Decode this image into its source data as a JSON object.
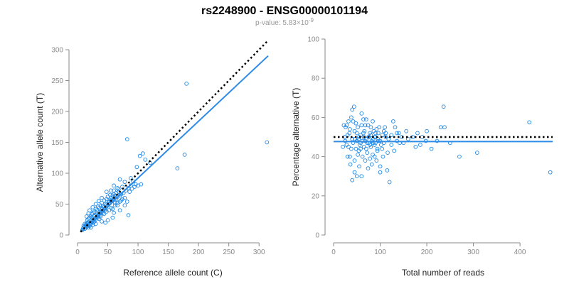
{
  "title": "rs2248900 - ENSG00000101194",
  "subtitle": {
    "prefix": "p-value: 5.83×10",
    "exponent": "-9"
  },
  "colors": {
    "points": "#1e88e5",
    "fit": "#2e8be6",
    "reference": "#000000"
  },
  "chart_data": [
    {
      "type": "scatter",
      "xlabel": "Reference allele count (C)",
      "ylabel": "Alternative allele count (T)",
      "xlim": [
        0,
        315
      ],
      "ylim": [
        0,
        300
      ],
      "xticks": [
        0,
        50,
        100,
        150,
        200,
        250,
        300
      ],
      "yticks": [
        0,
        50,
        100,
        150,
        200,
        250,
        300
      ],
      "fit_line": {
        "style": "solid",
        "x": [
          5,
          315
        ],
        "y": [
          5,
          290
        ]
      },
      "reference_line": {
        "style": "dotted",
        "x": [
          5,
          315
        ],
        "y": [
          5,
          315
        ]
      },
      "points": [
        [
          180,
          245
        ],
        [
          313,
          150
        ],
        [
          82,
          155
        ],
        [
          177,
          130
        ],
        [
          165,
          108
        ],
        [
          108,
          132
        ],
        [
          103,
          128
        ],
        [
          112,
          122
        ],
        [
          120,
          117
        ],
        [
          98,
          110
        ],
        [
          88,
          92
        ],
        [
          92,
          87
        ],
        [
          100,
          80
        ],
        [
          96,
          82
        ],
        [
          105,
          82
        ],
        [
          70,
          90
        ],
        [
          74,
          78
        ],
        [
          66,
          76
        ],
        [
          68,
          70
        ],
        [
          60,
          72
        ],
        [
          62,
          63
        ],
        [
          58,
          64
        ],
        [
          56,
          60
        ],
        [
          50,
          62
        ],
        [
          48,
          58
        ],
        [
          52,
          55
        ],
        [
          44,
          56
        ],
        [
          46,
          50
        ],
        [
          40,
          52
        ],
        [
          42,
          47
        ],
        [
          38,
          48
        ],
        [
          36,
          44
        ],
        [
          34,
          46
        ],
        [
          32,
          40
        ],
        [
          30,
          42
        ],
        [
          28,
          38
        ],
        [
          26,
          36
        ],
        [
          24,
          34
        ],
        [
          22,
          30
        ],
        [
          20,
          28
        ],
        [
          18,
          26
        ],
        [
          16,
          24
        ],
        [
          15,
          20
        ],
        [
          14,
          17
        ],
        [
          12,
          14
        ],
        [
          10,
          12
        ],
        [
          9,
          10
        ],
        [
          8,
          8
        ],
        [
          12,
          10
        ],
        [
          14,
          12
        ],
        [
          16,
          14
        ],
        [
          18,
          16
        ],
        [
          20,
          18
        ],
        [
          22,
          20
        ],
        [
          24,
          22
        ],
        [
          26,
          24
        ],
        [
          28,
          26
        ],
        [
          30,
          28
        ],
        [
          32,
          30
        ],
        [
          34,
          32
        ],
        [
          36,
          34
        ],
        [
          38,
          36
        ],
        [
          40,
          38
        ],
        [
          42,
          40
        ],
        [
          44,
          42
        ],
        [
          46,
          44
        ],
        [
          48,
          46
        ],
        [
          50,
          48
        ],
        [
          52,
          50
        ],
        [
          54,
          52
        ],
        [
          56,
          54
        ],
        [
          58,
          56
        ],
        [
          60,
          58
        ],
        [
          62,
          60
        ],
        [
          64,
          58
        ],
        [
          66,
          62
        ],
        [
          70,
          64
        ],
        [
          72,
          66
        ],
        [
          76,
          68
        ],
        [
          80,
          72
        ],
        [
          84,
          76
        ],
        [
          88,
          80
        ],
        [
          84,
          32
        ],
        [
          70,
          40
        ],
        [
          60,
          36
        ],
        [
          58,
          28
        ],
        [
          50,
          24
        ],
        [
          46,
          20
        ],
        [
          40,
          22
        ],
        [
          36,
          26
        ],
        [
          30,
          18
        ],
        [
          25,
          16
        ],
        [
          22,
          12
        ],
        [
          18,
          12
        ],
        [
          20,
          15
        ],
        [
          28,
          22
        ],
        [
          34,
          28
        ],
        [
          38,
          30
        ],
        [
          44,
          34
        ],
        [
          48,
          38
        ],
        [
          52,
          40
        ],
        [
          56,
          44
        ],
        [
          62,
          48
        ],
        [
          66,
          52
        ],
        [
          72,
          56
        ],
        [
          78,
          60
        ],
        [
          54,
          65
        ],
        [
          48,
          70
        ],
        [
          40,
          60
        ],
        [
          35,
          55
        ],
        [
          30,
          50
        ],
        [
          25,
          45
        ],
        [
          20,
          40
        ],
        [
          18,
          35
        ],
        [
          15,
          30
        ],
        [
          24,
          28
        ],
        [
          28,
          30
        ],
        [
          32,
          33
        ],
        [
          36,
          37
        ],
        [
          40,
          42
        ],
        [
          44,
          45
        ],
        [
          48,
          49
        ],
        [
          52,
          53
        ],
        [
          56,
          57
        ],
        [
          60,
          66
        ],
        [
          64,
          68
        ],
        [
          68,
          74
        ],
        [
          58,
          42
        ],
        [
          62,
          52
        ],
        [
          66,
          48
        ],
        [
          70,
          54
        ],
        [
          74,
          58
        ],
        [
          78,
          48
        ],
        [
          82,
          54
        ],
        [
          86,
          70
        ],
        [
          90,
          75
        ],
        [
          94,
          78
        ],
        [
          78,
          86
        ],
        [
          60,
          80
        ],
        [
          55,
          72
        ],
        [
          45,
          40
        ],
        [
          42,
          36
        ],
        [
          38,
          32
        ],
        [
          34,
          30
        ],
        [
          30,
          25
        ],
        [
          26,
          20
        ],
        [
          22,
          18
        ],
        [
          18,
          20
        ],
        [
          16,
          18
        ],
        [
          14,
          15
        ],
        [
          12,
          18
        ],
        [
          10,
          15
        ]
      ]
    },
    {
      "type": "scatter",
      "xlabel": "Total number of reads",
      "ylabel": "Percentage alternative (T)",
      "xlim": [
        0,
        470
      ],
      "ylim": [
        0,
        100
      ],
      "xticks": [
        0,
        100,
        200,
        300,
        400
      ],
      "yticks": [
        0,
        20,
        40,
        60,
        80,
        100
      ],
      "fit_line": {
        "style": "solid",
        "x": [
          0,
          470
        ],
        "y": [
          47.7,
          47.7
        ]
      },
      "reference_line": {
        "style": "dotted",
        "x": [
          0,
          470
        ],
        "y": [
          50,
          50
        ]
      },
      "points": [
        [
          465,
          32
        ],
        [
          420,
          57.5
        ],
        [
          308,
          42
        ],
        [
          270,
          40
        ],
        [
          250,
          47
        ],
        [
          238,
          55
        ],
        [
          236,
          65.5
        ],
        [
          230,
          55
        ],
        [
          222,
          48
        ],
        [
          210,
          44
        ],
        [
          200,
          53
        ],
        [
          198,
          48
        ],
        [
          190,
          50
        ],
        [
          186,
          46
        ],
        [
          180,
          52
        ],
        [
          176,
          45
        ],
        [
          170,
          50
        ],
        [
          160,
          49
        ],
        [
          156,
          53
        ],
        [
          150,
          47
        ],
        [
          146,
          50
        ],
        [
          140,
          52
        ],
        [
          136,
          48
        ],
        [
          132,
          55
        ],
        [
          128,
          58
        ],
        [
          124,
          46
        ],
        [
          120,
          27
        ],
        [
          116,
          42
        ],
        [
          112,
          50
        ],
        [
          108,
          47
        ],
        [
          104,
          44
        ],
        [
          100,
          32
        ],
        [
          98,
          55
        ],
        [
          96,
          48
        ],
        [
          94,
          43
        ],
        [
          92,
          38
        ],
        [
          90,
          50
        ],
        [
          88,
          46
        ],
        [
          86,
          53
        ],
        [
          84,
          41
        ],
        [
          82,
          48
        ],
        [
          80,
          45
        ],
        [
          78,
          52
        ],
        [
          76,
          50
        ],
        [
          74,
          34
        ],
        [
          72,
          47
        ],
        [
          70,
          44
        ],
        [
          68,
          56
        ],
        [
          66,
          53
        ],
        [
          64,
          59
        ],
        [
          62,
          48
        ],
        [
          60,
          62
        ],
        [
          58,
          51
        ],
        [
          56,
          46
        ],
        [
          54,
          43
        ],
        [
          52,
          55
        ],
        [
          50,
          52
        ],
        [
          48,
          57
        ],
        [
          46,
          49
        ],
        [
          44,
          65.5
        ],
        [
          42,
          47
        ],
        [
          40,
          64
        ],
        [
          38,
          44
        ],
        [
          36,
          36
        ],
        [
          34,
          52
        ],
        [
          32,
          58
        ],
        [
          30,
          40
        ],
        [
          28,
          46
        ],
        [
          26,
          55
        ],
        [
          24,
          50
        ],
        [
          22,
          56
        ],
        [
          20,
          45
        ],
        [
          60,
          56
        ],
        [
          65,
          45
        ],
        [
          70,
          59
        ],
        [
          75,
          50
        ],
        [
          80,
          55
        ],
        [
          85,
          47
        ],
        [
          90,
          52
        ],
        [
          95,
          49
        ],
        [
          100,
          35
        ],
        [
          105,
          51
        ],
        [
          110,
          55
        ],
        [
          115,
          33
        ],
        [
          60,
          30
        ],
        [
          55,
          35
        ],
        [
          50,
          30
        ],
        [
          45,
          32
        ],
        [
          40,
          28
        ],
        [
          35,
          40
        ],
        [
          45,
          38
        ],
        [
          52,
          41
        ],
        [
          58,
          44
        ],
        [
          62,
          40
        ],
        [
          68,
          38
        ],
        [
          72,
          42
        ],
        [
          78,
          39
        ],
        [
          82,
          36
        ],
        [
          88,
          40
        ],
        [
          94,
          44
        ],
        [
          100,
          48
        ],
        [
          106,
          40
        ],
        [
          112,
          52
        ],
        [
          118,
          49
        ],
        [
          124,
          51
        ],
        [
          130,
          43
        ],
        [
          136,
          52
        ],
        [
          142,
          47
        ],
        [
          70,
          49
        ],
        [
          75,
          47
        ],
        [
          80,
          51
        ],
        [
          85,
          49
        ],
        [
          90,
          47
        ],
        [
          65,
          50
        ],
        [
          55,
          50
        ],
        [
          50,
          48
        ],
        [
          45,
          53
        ],
        [
          40,
          49
        ],
        [
          35,
          54
        ],
        [
          30,
          51
        ],
        [
          25,
          48
        ],
        [
          28,
          56
        ],
        [
          32,
          45
        ],
        [
          38,
          60
        ],
        [
          42,
          58
        ],
        [
          48,
          44
        ],
        [
          54,
          49
        ],
        [
          58,
          47
        ],
        [
          64,
          52
        ],
        [
          68,
          48
        ],
        [
          74,
          56
        ],
        [
          78,
          46
        ],
        [
          84,
          58
        ],
        [
          88,
          50
        ],
        [
          92,
          54
        ],
        [
          96,
          52
        ],
        [
          102,
          46
        ],
        [
          108,
          53
        ]
      ]
    }
  ]
}
